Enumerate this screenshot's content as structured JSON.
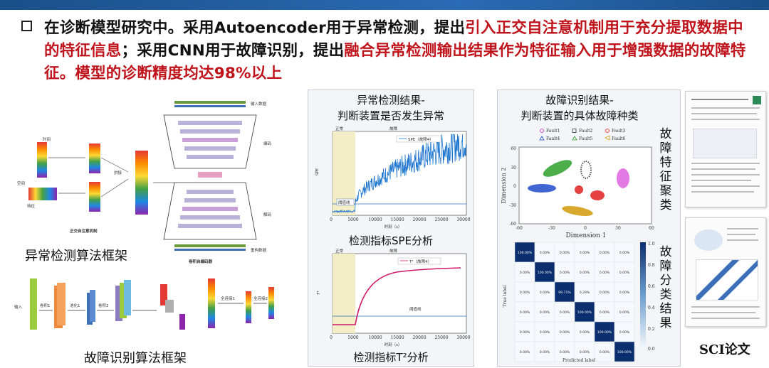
{
  "header": {
    "seg1": "在诊断模型研究中。采用Autoencoder用于异常检测，提出",
    "seg2": "引入正交自注意机制用于充分提取数据中的特征信息",
    "seg3": "；采用CNN用于故障识别，提出",
    "seg4": "融合异常检测输出结果作为特征输入用于增强数据的故障特征。",
    "seg5": "模型的诊断精度均达98%以上"
  },
  "left": {
    "anomaly_caption": "异常检测算法框架",
    "fault_caption": "故障识别算法框架",
    "labels": {
      "input_data": "输入数据",
      "encode": "编码",
      "decode": "解码",
      "reconstruct": "重构数据",
      "conv_ae": "卷积自编码器",
      "ortho": "正交自注意机制",
      "input": "输入",
      "conv1": "卷积1",
      "pool1": "池化1",
      "conv2": "卷积2",
      "fc1": "全连接1",
      "fc2": "全连接2",
      "time": "时间",
      "space": "空间",
      "feature": "特征",
      "concat": "拼接"
    }
  },
  "middle": {
    "title1": "异常检测结果-",
    "title2": "判断装置是否发生异常",
    "spe_caption": "检测指标SPE分析",
    "t2_caption": "检测指标T²分析",
    "normal": "正常",
    "fault": "故障",
    "threshold": "阈值线",
    "spe_legend": "SPE（故障4）",
    "t2_legend": "T²（故障4）",
    "xlabel": "时刻（s）",
    "xticks": [
      "0",
      "5000",
      "10000",
      "15000",
      "20000",
      "25000",
      "30000"
    ],
    "spe_ylabel": "SPE",
    "t2_ylabel": "T²"
  },
  "right": {
    "title1": "故障识别结果-",
    "title2": "判断装置的具体故障种类",
    "legend": [
      "Fault1",
      "Fault2",
      "Fault3",
      "Fault4",
      "Fault5",
      "Fault6"
    ],
    "xlabel": "Dimension 1",
    "ylabel": "Dimension 2",
    "xticks": [
      "-60",
      "-30",
      "0",
      "30",
      "60"
    ],
    "yticks": [
      "60",
      "30",
      "0",
      "-30",
      "-60"
    ],
    "cm_xlabel": "Predicted label",
    "cm_ylabel": "True label",
    "cm_diag": [
      "100.00%",
      "100.00%",
      "99.71%",
      "100.00%",
      "100.00%",
      "100.00%"
    ],
    "cm_off": "0.00%",
    "cm_cell_3_4": "0.29%",
    "colorbar": [
      "1.0",
      "0.8",
      "0.6",
      "0.4",
      "0.2",
      "0.0"
    ],
    "vert_cluster": "故障特征聚类",
    "vert_class": "故障分类结果",
    "sci": "SCI论文"
  },
  "colors": {
    "accent_red": "#c0141c",
    "bar_blue": "#1b4f8a",
    "spe_line": "#1f77d0",
    "t2_line": "#d01a6a"
  }
}
